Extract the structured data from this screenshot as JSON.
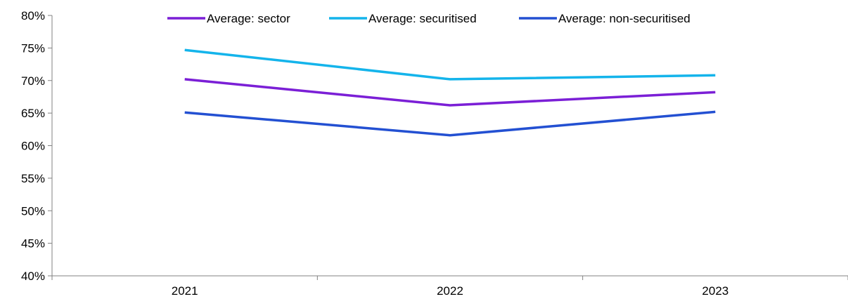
{
  "chart_data": {
    "type": "line",
    "title": "",
    "xlabel": "",
    "ylabel": "",
    "categories": [
      "2021",
      "2022",
      "2023"
    ],
    "ylim": [
      0.4,
      0.8
    ],
    "yticks": [
      0.4,
      0.45,
      0.5,
      0.55,
      0.6,
      0.65,
      0.7,
      0.75,
      0.8
    ],
    "ytick_labels": [
      "40%",
      "45%",
      "50%",
      "55%",
      "60%",
      "65%",
      "70%",
      "75%",
      "80%"
    ],
    "grid": false,
    "legend_position": "top",
    "series": [
      {
        "name": "Average: sector",
        "color": "#7B1FD6",
        "values": [
          0.702,
          0.662,
          0.682
        ]
      },
      {
        "name": "Average: securitised",
        "color": "#14B4EB",
        "values": [
          0.747,
          0.702,
          0.708
        ]
      },
      {
        "name": "Average: non-securitised",
        "color": "#2350D2",
        "values": [
          0.651,
          0.616,
          0.652
        ]
      }
    ]
  }
}
